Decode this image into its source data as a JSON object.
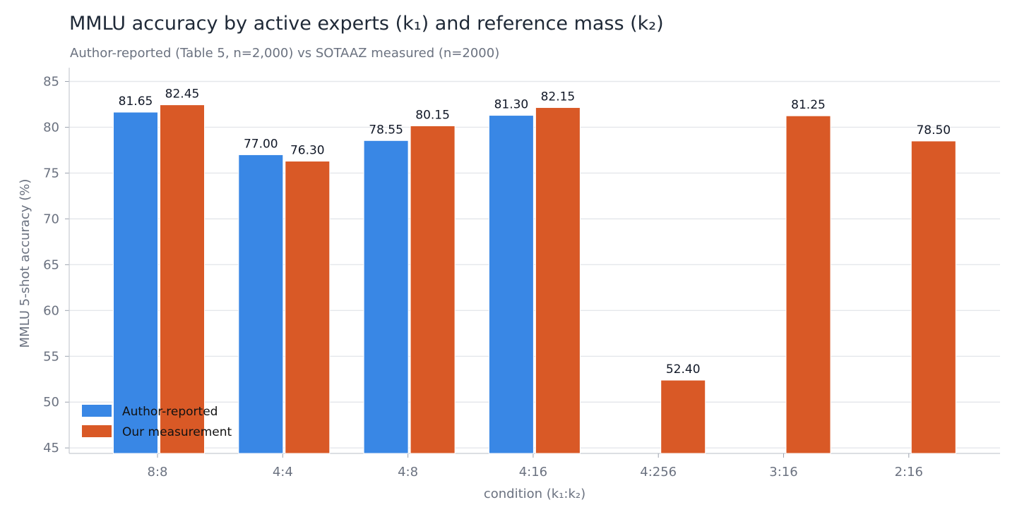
{
  "chart_data": {
    "type": "bar",
    "title": "MMLU accuracy by active experts (k₁) and reference mass (k₂)",
    "subtitle": "Author-reported (Table 5, n=2,000) vs SOTAAZ measured (n=2000)",
    "xlabel": "condition (k₁:k₂)",
    "ylabel": "MMLU 5-shot accuracy (%)",
    "ylim": [
      44.4,
      86.5
    ],
    "yticks": [
      45,
      50,
      55,
      60,
      65,
      70,
      75,
      80,
      85
    ],
    "grid": "horizontal",
    "legend_position": "lower-left",
    "categories": [
      "8:8",
      "4:4",
      "4:8",
      "4:16",
      "4:256",
      "3:16",
      "2:16"
    ],
    "series": [
      {
        "name": "Author-reported",
        "color": "#3987e5",
        "values": [
          81.65,
          77.0,
          78.55,
          81.3,
          null,
          null,
          null
        ],
        "labels": [
          "81.65",
          "77.00",
          "78.55",
          "81.30",
          null,
          null,
          null
        ]
      },
      {
        "name": "Our measurement",
        "color": "#d95926",
        "values": [
          82.45,
          76.3,
          80.15,
          82.15,
          52.4,
          81.25,
          78.5
        ],
        "labels": [
          "82.45",
          "76.30",
          "80.15",
          "82.15",
          "52.40",
          "81.25",
          "78.50"
        ]
      }
    ]
  }
}
